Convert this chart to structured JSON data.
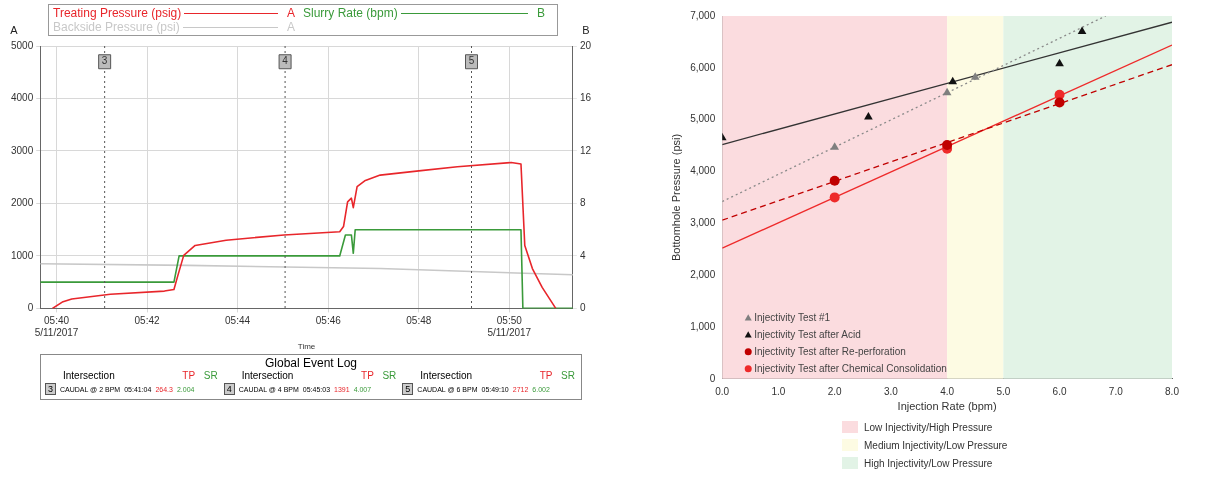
{
  "chart_data": [
    {
      "type": "line",
      "xlabel": "Time",
      "ylabel": "A",
      "y2label": "B",
      "legend": "top",
      "grid": true,
      "marker": "none",
      "xlim": [
        5.6607,
        5.8567
      ],
      "xticks": [
        {
          "value": 5.6667,
          "label": "05:40\n5/11/2017"
        },
        {
          "value": 5.7,
          "label": "05:42"
        },
        {
          "value": 5.7333,
          "label": "05:44"
        },
        {
          "value": 5.7667,
          "label": "05:46"
        },
        {
          "value": 5.8,
          "label": "05:48"
        },
        {
          "value": 5.8333,
          "label": "05:50\n5/11/2017"
        }
      ],
      "ylim": [
        0,
        5000
      ],
      "yticks": [
        0,
        1000,
        2000,
        3000,
        4000,
        5000
      ],
      "y2lim": [
        0,
        20
      ],
      "y2ticks": [
        0,
        4,
        8,
        12,
        16,
        20
      ],
      "series": [
        {
          "name": "Treating Pressure (psig)",
          "color": "#e8262b",
          "x": [
            5.6652,
            5.6688,
            5.6723,
            5.6865,
            5.7064,
            5.7099,
            5.7113,
            5.7135,
            5.7177,
            5.7291,
            5.7504,
            5.7709,
            5.7723,
            5.7738,
            5.7752,
            5.7759,
            5.7773,
            5.7801,
            5.7858,
            5.8,
            5.8142,
            5.834,
            5.8376,
            5.839,
            5.8418,
            5.8454,
            5.8504
          ],
          "values": [
            0,
            120,
            180,
            270,
            330,
            360,
            620,
            1010,
            1200,
            1300,
            1400,
            1460,
            1560,
            2030,
            2100,
            1920,
            2320,
            2430,
            2540,
            2620,
            2700,
            2780,
            2750,
            1200,
            760,
            400,
            0
          ]
        },
        {
          "name": "Slurry Rate (bpm)",
          "color": "#3a9a3a",
          "axis": "y2",
          "x": [
            5.6607,
            5.7099,
            5.7118,
            5.7709,
            5.773,
            5.7752,
            5.7759,
            5.7766,
            5.8376,
            5.8383,
            5.8567
          ],
          "values": [
            2,
            2,
            4,
            4,
            5.6,
            5.6,
            4.2,
            6,
            6,
            0,
            0
          ]
        },
        {
          "name": "Backside Pressure (psi)",
          "color": "#c8c8c8",
          "x": [
            5.6607,
            5.7149,
            5.7858,
            5.8567
          ],
          "values": [
            850,
            820,
            760,
            640
          ]
        }
      ],
      "ref_lines": [
        {
          "axis": "x",
          "value": 5.6844,
          "color": "#555555",
          "line_style": "dotted"
        },
        {
          "axis": "x",
          "value": 5.7508,
          "color": "#555555",
          "line_style": "dotted"
        },
        {
          "axis": "x",
          "value": 5.8194,
          "color": "#555555",
          "line_style": "dotted"
        }
      ],
      "annotations": [
        {
          "text": "3",
          "x": 5.6844,
          "y": 4700
        },
        {
          "text": "4",
          "x": 5.7508,
          "y": 4700
        },
        {
          "text": "5",
          "x": 5.8194,
          "y": 4700
        },
        "Global Event Log",
        "Intersection",
        "TP",
        "SR",
        "CAUDAL @ 2 BPM",
        "05:41:04",
        "264.3",
        "2.004",
        "CAUDAL @ 4 BPM",
        "05:45:03",
        "1391",
        "4.007",
        "CAUDAL @ 6 BPM",
        "05:49:10",
        "2712",
        "6.002"
      ]
    },
    {
      "type": "scatter",
      "xlabel": "Injection Rate (bpm)",
      "ylabel": "Bottomhole Pressure (psi)",
      "legend": "bottom left",
      "grid": false,
      "xlim": [
        0,
        8
      ],
      "xticks": [
        {
          "value": 0,
          "label": "0.0"
        },
        {
          "value": 1,
          "label": "1.0"
        },
        {
          "value": 2,
          "label": "2.0"
        },
        {
          "value": 3,
          "label": "3.0"
        },
        {
          "value": 4,
          "label": "4.0"
        },
        {
          "value": 5,
          "label": "5.0"
        },
        {
          "value": 6,
          "label": "6.0"
        },
        {
          "value": 7,
          "label": "7.0"
        },
        {
          "value": 8,
          "label": "8.0"
        }
      ],
      "ylim": [
        0,
        7000
      ],
      "yticks": [
        0,
        {
          "value": 1000,
          "label": "1,000"
        },
        {
          "value": 2000,
          "label": "2,000"
        },
        {
          "value": 3000,
          "label": "3,000"
        },
        {
          "value": 4000,
          "label": "4,000"
        },
        {
          "value": 5000,
          "label": "5,000"
        },
        {
          "value": 6000,
          "label": "6,000"
        },
        {
          "value": 7000,
          "label": "7,000"
        }
      ],
      "bands": [
        {
          "axis": "x",
          "from": 0,
          "to": 4,
          "label": "Low Injectivity/High Pressure",
          "color": "#fbdcdf"
        },
        {
          "axis": "x",
          "from": 4,
          "to": 5,
          "label": "Medium Injectivity/Low Pressure",
          "color": "#fdfbe3"
        },
        {
          "axis": "x",
          "from": 5,
          "to": 8,
          "label": "High Injectivity/Low Pressure",
          "color": "#e2f3e6"
        }
      ],
      "series": [
        {
          "name": "Injectivity Test #1",
          "color": "#7f7f7f",
          "marker": "triangle",
          "x": [
            2,
            4,
            4.5
          ],
          "values": [
            4470,
            5520,
            5820
          ]
        },
        {
          "name": "Injectivity Test after Acid",
          "color": "#111111",
          "marker": "triangle",
          "x": [
            0,
            2.6,
            4.1,
            6,
            6.4
          ],
          "values": [
            4650,
            5050,
            5730,
            6080,
            6700
          ]
        },
        {
          "name": "Injectivity Test after Re-perforation",
          "color": "#c00000",
          "marker": "circle",
          "x": [
            2,
            4,
            6
          ],
          "values": [
            3820,
            4510,
            5330
          ]
        },
        {
          "name": "Injectivity Test after Chemical Consolidation",
          "color": "#ee2a2a",
          "marker": "circle",
          "x": [
            2,
            4,
            6
          ],
          "values": [
            3500,
            4440,
            5480
          ]
        },
        {
          "type": "line",
          "color": "#8a8a8a",
          "marker": "none",
          "line_style": "dotted",
          "x": [
            0,
            6.82
          ],
          "values": [
            3420,
            7000
          ]
        },
        {
          "type": "line",
          "color": "#333333",
          "marker": "none",
          "line_style": "solid",
          "x": [
            0,
            8
          ],
          "values": [
            4520,
            6880
          ]
        },
        {
          "type": "line",
          "color": "#c00000",
          "marker": "none",
          "line_style": "dashed",
          "x": [
            0,
            8
          ],
          "values": [
            3060,
            6060
          ]
        },
        {
          "type": "line",
          "color": "#ee2a2a",
          "marker": "none",
          "line_style": "solid",
          "x": [
            0,
            8
          ],
          "values": [
            2520,
            6440
          ]
        }
      ]
    }
  ]
}
